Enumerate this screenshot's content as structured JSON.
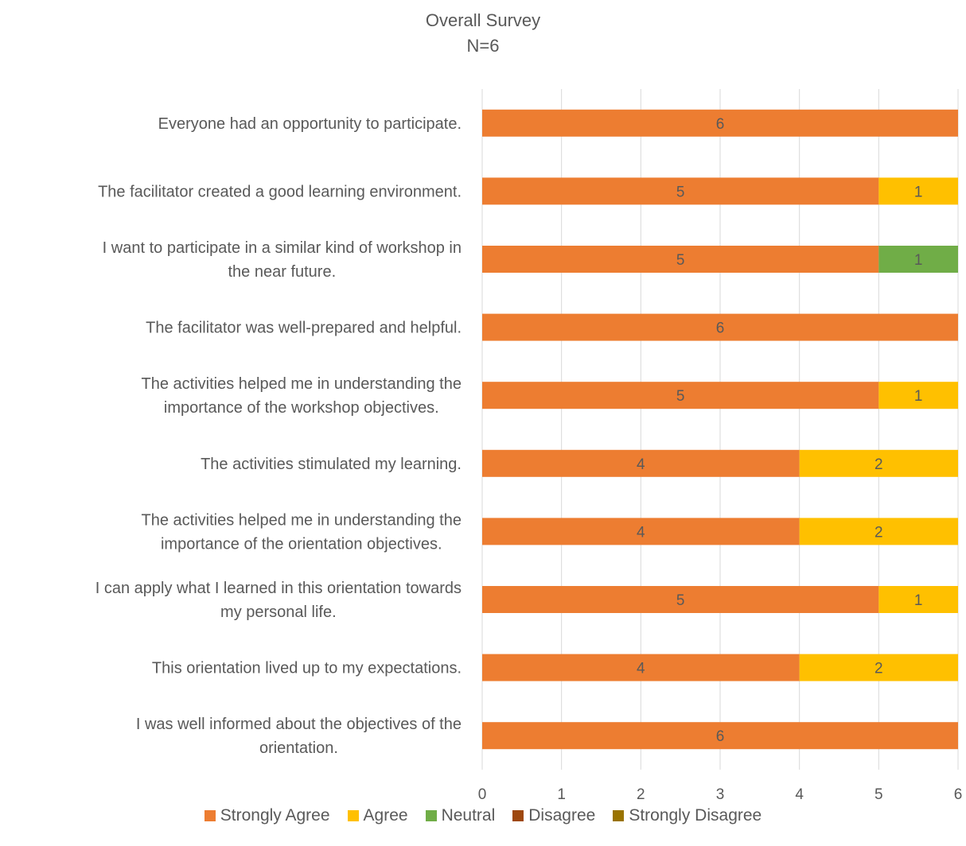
{
  "chart_data": {
    "type": "bar",
    "orientation": "horizontal",
    "stacked": true,
    "title": "Overall Survey",
    "subtitle": "N=6",
    "categories": [
      "Everyone had an opportunity to participate.",
      "The facilitator created a good learning environment.",
      "I want to participate in a similar kind of workshop in the near future.",
      "The facilitator was well-prepared and helpful.",
      "The activities helped me in understanding the importance of the workshop objectives.",
      "The activities stimulated my learning.",
      "The activities helped me in understanding the importance of the orientation objectives.",
      "I can apply what I learned in this orientation towards my personal life.",
      "This orientation lived up to my expectations.",
      "I was well informed about the objectives of the orientation."
    ],
    "category_lines": [
      [
        "Everyone had an opportunity to participate."
      ],
      [
        "The facilitator created a good learning environment."
      ],
      [
        "I want to participate in a similar kind of workshop in",
        "the near future."
      ],
      [
        "The facilitator was well-prepared and helpful."
      ],
      [
        "The activities helped me in understanding the",
        "importance of the workshop objectives."
      ],
      [
        "The activities stimulated my learning."
      ],
      [
        "The activities helped me in understanding the",
        "importance of the orientation objectives."
      ],
      [
        "I can apply what I learned in this orientation towards",
        "my personal life."
      ],
      [
        "This orientation lived up to my expectations."
      ],
      [
        "I was well informed about the objectives of the",
        "orientation."
      ]
    ],
    "series": [
      {
        "name": "Strongly Agree",
        "color": "#ED7D31",
        "values": [
          6,
          5,
          5,
          6,
          5,
          4,
          4,
          5,
          4,
          6
        ]
      },
      {
        "name": "Agree",
        "color": "#FFC000",
        "values": [
          0,
          1,
          0,
          0,
          1,
          2,
          2,
          1,
          2,
          0
        ]
      },
      {
        "name": "Neutral",
        "color": "#70AD47",
        "values": [
          0,
          0,
          1,
          0,
          0,
          0,
          0,
          0,
          0,
          0
        ]
      },
      {
        "name": "Disagree",
        "color": "#9E480E",
        "values": [
          0,
          0,
          0,
          0,
          0,
          0,
          0,
          0,
          0,
          0
        ]
      },
      {
        "name": "Strongly Disagree",
        "color": "#997300",
        "values": [
          0,
          0,
          0,
          0,
          0,
          0,
          0,
          0,
          0,
          0
        ]
      }
    ],
    "xlim": [
      0,
      6
    ],
    "xticks": [
      "0",
      "1",
      "2",
      "3",
      "4",
      "5",
      "6"
    ],
    "xlabel": "",
    "ylabel": "",
    "grid": true,
    "legend_position": "bottom",
    "data_label_color": "#595959",
    "grid_color": "#D9D9D9",
    "text_color": "#595959"
  }
}
